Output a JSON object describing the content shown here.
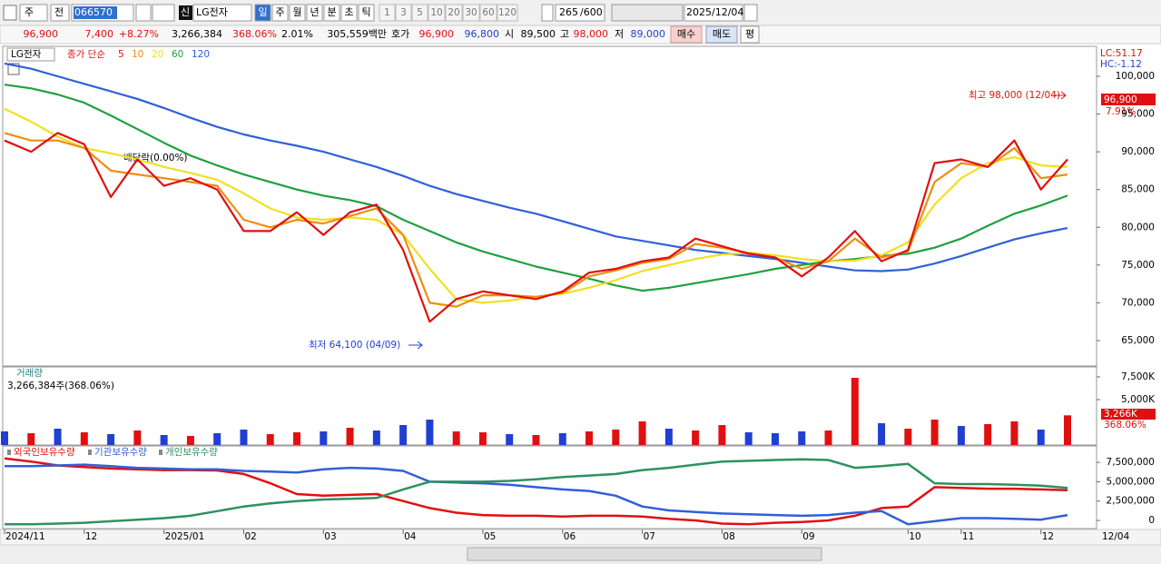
{
  "toolbar": {
    "code_type": "주",
    "market": "전",
    "code": "066570",
    "tag": "신",
    "name": "LG전자",
    "periods": [
      "일",
      "주",
      "월",
      "년",
      "분",
      "초",
      "틱"
    ],
    "intervals": [
      "1",
      "3",
      "5",
      "10",
      "20",
      "30",
      "60",
      "120"
    ],
    "count": "265",
    "max": "/600",
    "date": "2025/12/04"
  },
  "info": {
    "price": "96,900",
    "change": "7,400",
    "change_pct": "+8.27%",
    "volume": "3,266,384",
    "volume_pct": "368.06%",
    "turnover": "2.01%",
    "amount": "305,559백만",
    "quote_label": "호가",
    "ask": "96,900",
    "bid": "96,800",
    "open_label": "시",
    "open": "89,500",
    "high_label": "고",
    "high": "98,000",
    "low_label": "저",
    "low": "89,000",
    "buy": "매수",
    "sell": "매도",
    "avg": "평"
  },
  "chart_data": [
    {
      "type": "line",
      "title": "LG전자",
      "legend_label": "종가 단순",
      "categories": [
        "2024/11",
        null,
        null,
        "12",
        null,
        null,
        "2025/01",
        null,
        null,
        "02",
        null,
        null,
        "03",
        null,
        null,
        "04",
        null,
        null,
        "05",
        null,
        null,
        "06",
        null,
        null,
        "07",
        null,
        null,
        "08",
        null,
        null,
        "09",
        null,
        null,
        null,
        "10",
        null,
        "11",
        null,
        null,
        "12",
        null
      ],
      "x_end_label": "12/04",
      "ylim": [
        61750,
        103850
      ],
      "yticks": [
        {
          "value": 65000,
          "label": "65,000"
        },
        {
          "value": 70000,
          "label": "70,000"
        },
        {
          "value": 75000,
          "label": "75,000"
        },
        {
          "value": 80000,
          "label": "80,000"
        },
        {
          "value": 85000,
          "label": "85,000"
        },
        {
          "value": 90000,
          "label": "90,000"
        },
        {
          "value": 95000,
          "label": "95,000"
        },
        {
          "value": 100000,
          "label": "100,000"
        }
      ],
      "grid": false,
      "series": [
        {
          "name": "120",
          "color": "#3060d8",
          "values": [
            101700,
            101000,
            100000,
            99000,
            98000,
            97000,
            95800,
            94500,
            93300,
            92300,
            91500,
            90800,
            90000,
            89000,
            88000,
            86800,
            85500,
            84400,
            83500,
            82600,
            81800,
            80800,
            79800,
            78800,
            78200,
            77600,
            77000,
            76600,
            76200,
            75800,
            75300,
            74800,
            74300,
            74200,
            74400,
            75200,
            76200,
            77300,
            78400,
            79200,
            79900
          ]
        },
        {
          "name": "60",
          "color": "#20a040",
          "values": [
            98900,
            98400,
            97600,
            96500,
            94800,
            93000,
            91200,
            89500,
            88200,
            87000,
            86000,
            85000,
            84200,
            83600,
            82800,
            81000,
            79500,
            78000,
            76800,
            75800,
            74800,
            74000,
            73200,
            72300,
            71600,
            72000,
            72600,
            73200,
            73800,
            74500,
            75000,
            75500,
            75800,
            76200,
            76500,
            77300,
            78500,
            80200,
            81800,
            82900,
            84200
          ]
        },
        {
          "name": "20",
          "color": "#f0e020",
          "values": [
            95700,
            94000,
            92000,
            90500,
            89800,
            89000,
            88000,
            87200,
            86300,
            84500,
            82500,
            81300,
            81000,
            81300,
            81000,
            79000,
            74500,
            70500,
            70000,
            70300,
            70800,
            71200,
            72000,
            73000,
            74200,
            75000,
            75800,
            76400,
            76600,
            76300,
            75800,
            75500,
            75600,
            76300,
            78000,
            83000,
            86500,
            88500,
            89300,
            88200,
            88000
          ]
        },
        {
          "name": "10",
          "color": "#f08c10",
          "values": [
            92500,
            91500,
            91500,
            90500,
            87500,
            87000,
            86500,
            86000,
            85500,
            81000,
            80000,
            81000,
            80500,
            81500,
            82500,
            79000,
            70000,
            69500,
            71000,
            71000,
            70800,
            71300,
            73500,
            74300,
            75300,
            75800,
            77800,
            77300,
            76600,
            76000,
            74500,
            75500,
            78500,
            76000,
            76800,
            86000,
            88500,
            88000,
            90500,
            86500,
            87000
          ]
        },
        {
          "name": "5",
          "color": "#e01010",
          "values": [
            91500,
            90000,
            92500,
            91000,
            84000,
            89000,
            85500,
            86500,
            85000,
            79500,
            79500,
            82000,
            79000,
            82000,
            83000,
            77000,
            67500,
            70500,
            71500,
            71000,
            70500,
            71500,
            74000,
            74500,
            75500,
            76000,
            78500,
            77500,
            76500,
            76000,
            73500,
            76000,
            79500,
            75500,
            77000,
            88500,
            89000,
            88000,
            91500,
            85000,
            89000
          ]
        }
      ],
      "annotations": {
        "high": "최고 98,000 (12/04)",
        "low": "최저 64,100 (04/09)",
        "dividend": "배당락(0.00%)",
        "last_price": "96,900",
        "last_pct": "7.91%",
        "lc": "LC:51.17",
        "hc": "HC:-1.12"
      }
    },
    {
      "type": "bar",
      "title": "거래량",
      "subtitle": "3,266,384주(368.06%)",
      "ylim": [
        0,
        8600000
      ],
      "yticks": [
        {
          "value": 5000000,
          "label": "5,000K"
        },
        {
          "value": 7500000,
          "label": "7,500K"
        }
      ],
      "values": [
        1500000,
        1300000,
        1800000,
        1400000,
        1200000,
        1600000,
        1100000,
        1000000,
        1300000,
        1700000,
        1200000,
        1400000,
        1500000,
        1900000,
        1600000,
        2200000,
        2800000,
        1500000,
        1400000,
        1200000,
        1100000,
        1300000,
        1500000,
        1700000,
        2600000,
        1800000,
        1600000,
        2200000,
        1400000,
        1300000,
        1500000,
        1600000,
        7400000,
        2400000,
        1800000,
        2800000,
        2100000,
        2300000,
        2600000,
        1700000,
        3266384
      ],
      "colors": [
        "#2040d0",
        "#e01010",
        "#2040d0",
        "#e01010",
        "#2040d0",
        "#e01010",
        "#2040d0",
        "#e01010",
        "#2040d0",
        "#2040d0",
        "#e01010",
        "#e01010",
        "#2040d0",
        "#e01010",
        "#2040d0",
        "#2040d0",
        "#2040d0",
        "#e01010",
        "#e01010",
        "#2040d0",
        "#e01010",
        "#2040d0",
        "#e01010",
        "#e01010",
        "#e01010",
        "#2040d0",
        "#e01010",
        "#e01010",
        "#2040d0",
        "#2040d0",
        "#2040d0",
        "#e01010",
        "#e01010",
        "#2040d0",
        "#e01010",
        "#e01010",
        "#2040d0",
        "#e01010",
        "#e01010",
        "#2040d0",
        "#e01010"
      ],
      "last_label": "3,266K",
      "last_pct": "368.06%"
    },
    {
      "type": "line",
      "ylim": [
        -1050000,
        9620000
      ],
      "yticks": [
        0,
        {
          "value": 2500000,
          "label": "2,500,000"
        },
        {
          "value": 5000000,
          "label": "5,000,000"
        },
        {
          "value": 7500000,
          "label": "7,500,000"
        }
      ],
      "series": [
        {
          "name": "외국인보유수량",
          "color": "#e01010",
          "values": [
            8000000,
            7600000,
            7100000,
            6900000,
            6700000,
            6600000,
            6500000,
            6500000,
            6450000,
            6000000,
            4800000,
            3400000,
            3200000,
            3300000,
            3400000,
            2500000,
            1600000,
            1000000,
            700000,
            600000,
            600000,
            500000,
            600000,
            600000,
            500000,
            200000,
            0,
            -400000,
            -500000,
            -300000,
            -200000,
            0,
            600000,
            1600000,
            1800000,
            4300000,
            4200000,
            4100000,
            4100000,
            4000000,
            3900000
          ]
        },
        {
          "name": "기관보유수량",
          "color": "#3060d8",
          "values": [
            7000000,
            7000000,
            7100000,
            7200000,
            7000000,
            6800000,
            6700000,
            6600000,
            6600000,
            6400000,
            6300000,
            6200000,
            6600000,
            6800000,
            6700000,
            6400000,
            5000000,
            4900000,
            4800000,
            4600000,
            4300000,
            4000000,
            3800000,
            3200000,
            1800000,
            1300000,
            1100000,
            900000,
            800000,
            700000,
            600000,
            700000,
            1000000,
            1200000,
            -500000,
            -100000,
            300000,
            300000,
            200000,
            100000,
            700000
          ]
        },
        {
          "name": "개인보유수량",
          "color": "#309060",
          "values": [
            -500000,
            -500000,
            -400000,
            -300000,
            -100000,
            100000,
            300000,
            600000,
            1200000,
            1800000,
            2200000,
            2500000,
            2700000,
            2800000,
            2900000,
            4000000,
            5000000,
            5000000,
            5000000,
            5100000,
            5300000,
            5600000,
            5800000,
            6000000,
            6500000,
            6800000,
            7200000,
            7600000,
            7700000,
            7800000,
            7900000,
            7800000,
            6800000,
            7000000,
            7300000,
            4800000,
            4700000,
            4700000,
            4600000,
            4500000,
            4200000
          ]
        }
      ]
    }
  ]
}
